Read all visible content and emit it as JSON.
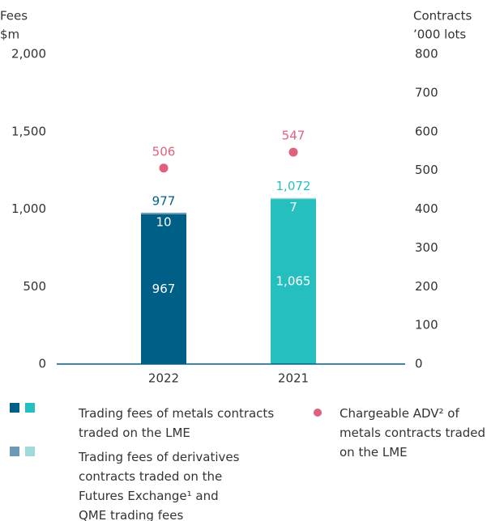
{
  "chart_data": {
    "type": "bar",
    "ylabel": [
      "Fees",
      "$m"
    ],
    "y2label": [
      "Contracts",
      "’000 lots"
    ],
    "categories": [
      "2022",
      "2021"
    ],
    "series": [
      {
        "name": "Trading fees of metals contracts traded on the LME",
        "colors": [
          "#005f87",
          "#26bfbf"
        ],
        "values": [
          967,
          1065
        ],
        "value_labels": [
          "967",
          "1,065"
        ]
      },
      {
        "name": "Trading fees of derivatives contracts traded on the Futures Exchange¹ and QME trading fees",
        "colors": [
          "#6b99b6",
          "#9fd9d9"
        ],
        "values": [
          10,
          7
        ]
      },
      {
        "name": "Chargeable ADV² of metals contracts traded on the LME",
        "type": "scatter",
        "color": "#e0607e",
        "axis": "y2",
        "values": [
          506,
          547
        ]
      }
    ],
    "totals": [
      977,
      1072
    ],
    "total_labels": [
      "977",
      "1,072"
    ],
    "ylim": [
      0,
      2000
    ],
    "yticks": [
      0,
      500,
      {
        "value": 1000,
        "label": "1,000"
      },
      {
        "value": 1500,
        "label": "1,500"
      },
      {
        "value": 2000,
        "label": "2,000"
      }
    ],
    "y2lim": [
      0,
      800
    ],
    "y2ticks": [
      0,
      100,
      200,
      300,
      400,
      500,
      600,
      700,
      800
    ]
  }
}
